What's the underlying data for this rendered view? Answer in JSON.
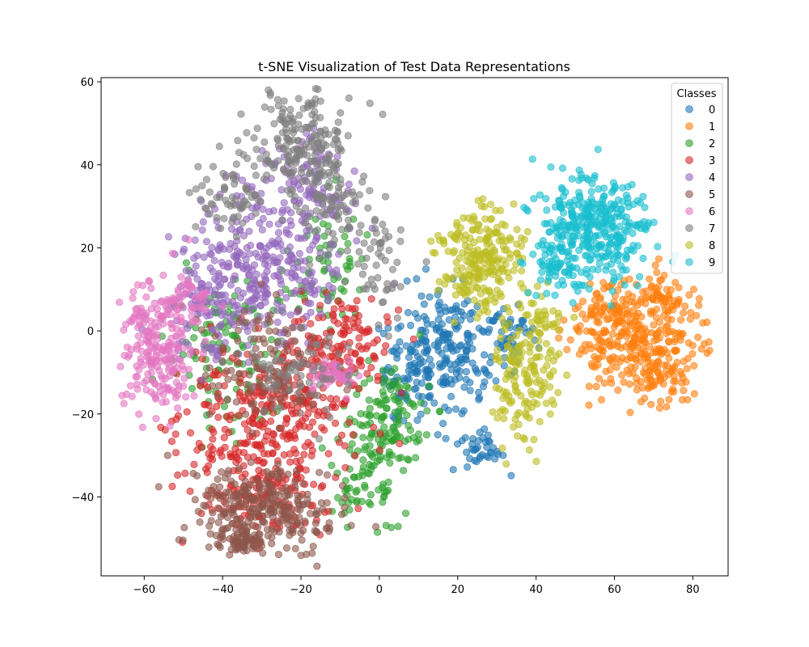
{
  "chart_data": {
    "type": "scatter",
    "title": "t-SNE Visualization of Test Data Representations",
    "xlabel": "",
    "ylabel": "",
    "xlim": [
      -71,
      89
    ],
    "ylim": [
      -59,
      61
    ],
    "x_ticks": [
      -60,
      -40,
      -20,
      0,
      20,
      40,
      60,
      80
    ],
    "y_ticks": [
      -40,
      -20,
      0,
      20,
      40,
      60
    ],
    "x_tick_labels": [
      "−60",
      "−40",
      "−20",
      "0",
      "20",
      "40",
      "60",
      "80"
    ],
    "y_tick_labels": [
      "−40",
      "−20",
      "0",
      "20",
      "40",
      "60"
    ],
    "grid": false,
    "legend": {
      "title": "Classes",
      "placement": "top-right"
    },
    "marker_alpha": 0.6,
    "series": [
      {
        "name": "0",
        "color": "#1f77b4",
        "clusters": [
          {
            "cx": 18,
            "cy": -4,
            "sx": 7,
            "sy": 7,
            "n": 200
          },
          {
            "cx": 8,
            "cy": -12,
            "sx": 4,
            "sy": 5,
            "n": 70
          },
          {
            "cx": 25,
            "cy": -28,
            "sx": 4,
            "sy": 3,
            "n": 40
          },
          {
            "cx": 34,
            "cy": 0,
            "sx": 3,
            "sy": 4,
            "n": 40
          }
        ]
      },
      {
        "name": "1",
        "color": "#ff7f0e",
        "clusters": [
          {
            "cx": 68,
            "cy": -5,
            "sx": 7,
            "sy": 6,
            "n": 260
          },
          {
            "cx": 58,
            "cy": 3,
            "sx": 5,
            "sy": 4,
            "n": 100
          },
          {
            "cx": 72,
            "cy": 8,
            "sx": 3,
            "sy": 3,
            "n": 60
          }
        ]
      },
      {
        "name": "2",
        "color": "#2ca02c",
        "clusters": [
          {
            "cx": 2,
            "cy": -22,
            "sx": 5,
            "sy": 8,
            "n": 140
          },
          {
            "cx": -40,
            "cy": -5,
            "sx": 8,
            "sy": 10,
            "n": 110
          },
          {
            "cx": -15,
            "cy": 15,
            "sx": 6,
            "sy": 8,
            "n": 70
          },
          {
            "cx": -5,
            "cy": -35,
            "sx": 5,
            "sy": 6,
            "n": 50
          }
        ]
      },
      {
        "name": "3",
        "color": "#d62728",
        "clusters": [
          {
            "cx": -28,
            "cy": -20,
            "sx": 12,
            "sy": 9,
            "n": 320
          },
          {
            "cx": -10,
            "cy": -3,
            "sx": 6,
            "sy": 6,
            "n": 120
          },
          {
            "cx": -30,
            "cy": -40,
            "sx": 8,
            "sy": 5,
            "n": 120
          }
        ]
      },
      {
        "name": "4",
        "color": "#9467bd",
        "clusters": [
          {
            "cx": -30,
            "cy": 15,
            "sx": 10,
            "sy": 9,
            "n": 310
          },
          {
            "cx": -18,
            "cy": 35,
            "sx": 6,
            "sy": 6,
            "n": 90
          },
          {
            "cx": -45,
            "cy": 5,
            "sx": 5,
            "sy": 6,
            "n": 70
          }
        ]
      },
      {
        "name": "5",
        "color": "#8c564b",
        "clusters": [
          {
            "cx": -30,
            "cy": -43,
            "sx": 9,
            "sy": 5,
            "n": 260
          },
          {
            "cx": -35,
            "cy": -50,
            "sx": 3,
            "sy": 2,
            "n": 60
          },
          {
            "cx": -28,
            "cy": -8,
            "sx": 8,
            "sy": 8,
            "n": 120
          }
        ]
      },
      {
        "name": "6",
        "color": "#e377c2",
        "clusters": [
          {
            "cx": -57,
            "cy": -3,
            "sx": 5,
            "sy": 8,
            "n": 230
          },
          {
            "cx": -12,
            "cy": -10,
            "sx": 3,
            "sy": 2,
            "n": 50
          },
          {
            "cx": -48,
            "cy": 8,
            "sx": 3,
            "sy": 3,
            "n": 30
          }
        ]
      },
      {
        "name": "7",
        "color": "#7f7f7f",
        "clusters": [
          {
            "cx": -20,
            "cy": 45,
            "sx": 6,
            "sy": 6,
            "n": 180
          },
          {
            "cx": -12,
            "cy": 30,
            "sx": 6,
            "sy": 6,
            "n": 90
          },
          {
            "cx": -38,
            "cy": 33,
            "sx": 4,
            "sy": 4,
            "n": 60
          },
          {
            "cx": -20,
            "cy": -10,
            "sx": 8,
            "sy": 6,
            "n": 60
          },
          {
            "cx": 0,
            "cy": 15,
            "sx": 4,
            "sy": 6,
            "n": 40
          }
        ]
      },
      {
        "name": "8",
        "color": "#bcbd22",
        "clusters": [
          {
            "cx": 26,
            "cy": 18,
            "sx": 5,
            "sy": 6,
            "n": 220
          },
          {
            "cx": 36,
            "cy": -12,
            "sx": 4,
            "sy": 8,
            "n": 140
          },
          {
            "cx": 42,
            "cy": 3,
            "sx": 3,
            "sy": 4,
            "n": 40
          }
        ]
      },
      {
        "name": "9",
        "color": "#17becf",
        "clusters": [
          {
            "cx": 55,
            "cy": 25,
            "sx": 7,
            "sy": 6,
            "n": 330
          },
          {
            "cx": 45,
            "cy": 15,
            "sx": 4,
            "sy": 4,
            "n": 60
          }
        ]
      }
    ]
  }
}
